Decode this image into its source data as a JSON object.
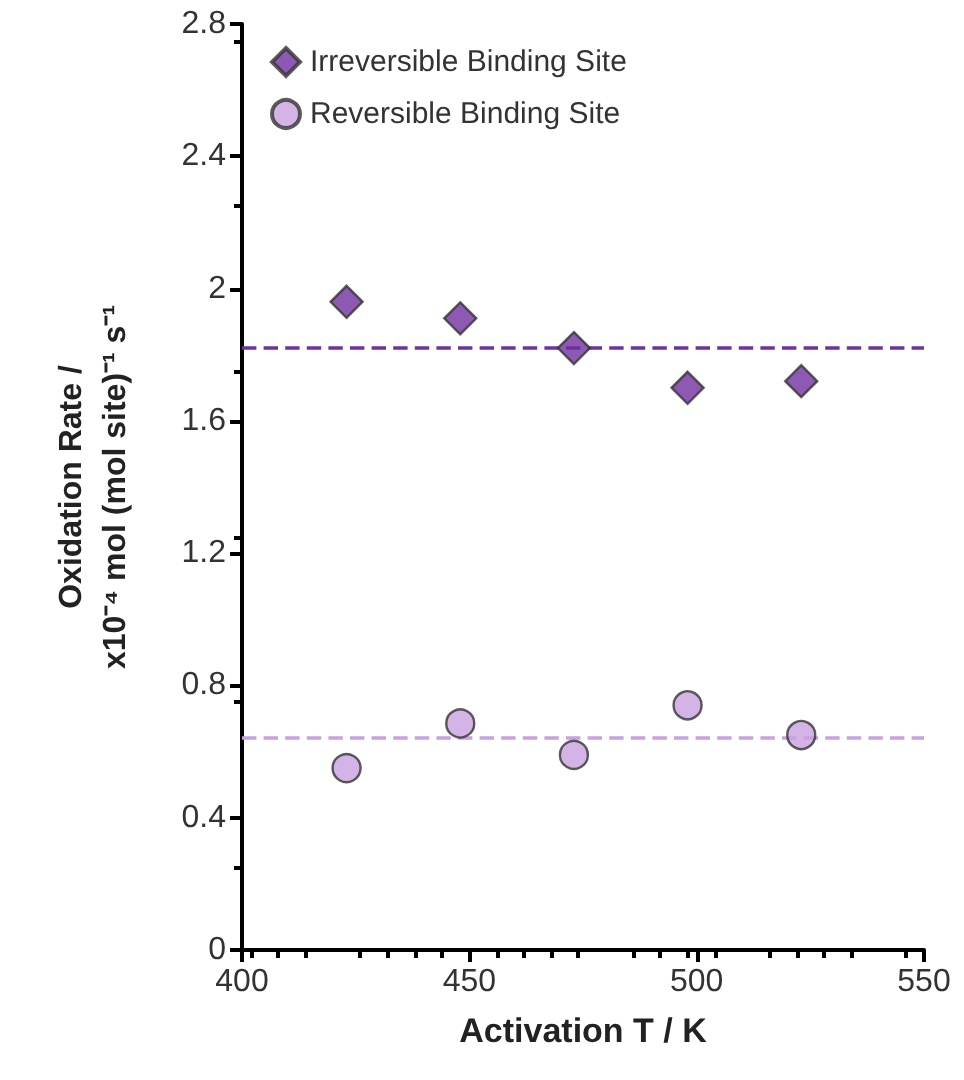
{
  "chart_data": {
    "type": "scatter",
    "xlabel": "Activation T / K",
    "ylabel": "Oxidation Rate /\nx10⁻⁴ mol (mol site)⁻¹ s⁻¹",
    "x": [
      423,
      448,
      473,
      498,
      523
    ],
    "series": [
      {
        "name": "Irreversible Binding Site",
        "color": "#7030a0",
        "marker": "diamond",
        "values": [
          1.96,
          1.91,
          1.82,
          1.7,
          1.72
        ]
      },
      {
        "name": "Reversible Binding Site",
        "color": "#c9a0e0",
        "marker": "circle",
        "values": [
          0.55,
          0.685,
          0.59,
          0.74,
          0.65
        ]
      }
    ],
    "ref_lines": [
      {
        "axis": "y",
        "value": 1.82,
        "color": "#7030a0",
        "line_style": "dashed"
      },
      {
        "axis": "y",
        "value": 0.64,
        "color": "#c9a0e0",
        "line_style": "dashed"
      }
    ],
    "xlim": [
      400,
      550
    ],
    "xticks": [
      400,
      450,
      500,
      550
    ],
    "ylim": [
      0,
      2.8
    ],
    "yticks": [
      0,
      0.4,
      0.8,
      1.2,
      1.6,
      2,
      2.4,
      2.8
    ],
    "grid": false,
    "legend": "top left"
  }
}
